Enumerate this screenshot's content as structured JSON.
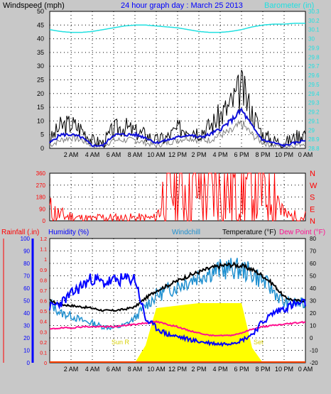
{
  "header": {
    "left_title": "Windspeed (mph)",
    "center_title": "24 hour graph day : March 25 2013",
    "right_title": "Barometer (in)"
  },
  "colors": {
    "background": "#c8c8c8",
    "plot_bg": "#ffffff",
    "wind": "#000000",
    "wind_avg": "#1010d8",
    "wind_gust_fill": "#808080",
    "barometer": "#20e0e0",
    "direction": "#ff0000",
    "rain": "#ff2020",
    "humidity": "#0000ff",
    "windchill": "#2090d0",
    "temperature": "#000000",
    "dewpoint": "#ff1090",
    "solar": "#ffff00",
    "sun_label": "#d8d000"
  },
  "legend3": {
    "rainfall": "Rainfall (.in)",
    "humidity": "Humidity (%)",
    "windchill": "Windchill",
    "temperature": "Temperature (°F)",
    "dewpoint": "Dew Point (°F)"
  },
  "annotations": {
    "sun_rise": "Sun R",
    "sun_set": "Set"
  },
  "chart_data": [
    {
      "type": "line",
      "title": "24 hour graph day : March 25 2013",
      "x_tick_labels": [
        "2 AM",
        "4 AM",
        "6 AM",
        "8 AM",
        "10 AM",
        "12 PM",
        "2 PM",
        "4 PM",
        "6 PM",
        "8 PM",
        "10 PM",
        "0 AM"
      ],
      "x": [
        0,
        1,
        2,
        3,
        4,
        5,
        6,
        7,
        8,
        9,
        10,
        11,
        12,
        13,
        14,
        15,
        16,
        17,
        18,
        19,
        20,
        21,
        22,
        23,
        24
      ],
      "y_left": {
        "label": "Windspeed (mph)",
        "ticks": [
          0,
          5,
          10,
          15,
          20,
          25,
          30,
          35,
          40,
          45,
          50
        ],
        "range": [
          0,
          50
        ]
      },
      "y_right": {
        "label": "Barometer (in)",
        "ticks": [
          "28.8",
          "28.9",
          "29",
          "29.1",
          "29.2",
          "29.3",
          "29.4",
          "29.5",
          "29.6",
          "29.7",
          "29.8",
          "29.9",
          "30",
          "30.1",
          "30.2",
          "30.3"
        ],
        "range": [
          28.8,
          30.3
        ]
      },
      "series": [
        {
          "name": "Windspeed",
          "axis": "left",
          "values": [
            3,
            8,
            9,
            7,
            3,
            2,
            7,
            8,
            6,
            5,
            3,
            4,
            7,
            8,
            6,
            8,
            12,
            16,
            22,
            13,
            5,
            3,
            2,
            4,
            6
          ]
        },
        {
          "name": "Average",
          "axis": "left",
          "values": [
            2,
            5,
            5,
            4,
            1,
            1,
            5,
            5,
            5,
            4,
            2,
            3,
            4,
            5,
            4,
            5,
            7,
            10,
            14,
            8,
            3,
            2,
            1,
            2,
            3
          ]
        },
        {
          "name": "Gust",
          "axis": "left",
          "values": [
            1,
            3,
            4,
            3,
            1,
            1,
            3,
            3,
            3,
            2,
            1,
            2,
            3,
            4,
            3,
            3,
            5,
            6,
            9,
            5,
            2,
            1,
            1,
            1,
            2
          ]
        },
        {
          "name": "Barometer",
          "axis": "right",
          "values": [
            30.1,
            30.08,
            30.07,
            30.07,
            30.08,
            30.1,
            30.12,
            30.14,
            30.15,
            30.15,
            30.14,
            30.13,
            30.12,
            30.1,
            30.08,
            30.07,
            30.07,
            30.08,
            30.1,
            30.13,
            30.15,
            30.16,
            30.16,
            30.17,
            30.17
          ]
        }
      ],
      "grid": true
    },
    {
      "type": "scatter",
      "y_left_ticks": [
        0,
        90,
        180,
        270,
        360
      ],
      "y_right_ticks": [
        "N",
        "E",
        "S",
        "W",
        "N"
      ],
      "range": [
        0,
        360
      ],
      "series": [
        {
          "name": "Wind Direction",
          "values": [
            80,
            40,
            30,
            20,
            15,
            25,
            20,
            20,
            20,
            20,
            20,
            280,
            270,
            260,
            250,
            245,
            240,
            250,
            260,
            260,
            270,
            290,
            40,
            30,
            30
          ]
        }
      ],
      "grid": true
    },
    {
      "type": "line",
      "y_left_ticks": [
        0,
        10,
        20,
        30,
        40,
        50,
        60,
        70,
        80,
        90,
        100
      ],
      "y_inner_ticks": [
        "0",
        "0.1",
        "0.2",
        "0.3",
        "0.4",
        "0.5",
        "0.6",
        "0.7",
        "0.8",
        "0.9",
        "1",
        "1.1",
        "1.2"
      ],
      "y_right_ticks": [
        -20,
        -10,
        0,
        10,
        20,
        30,
        40,
        50,
        60,
        70,
        80
      ],
      "x_tick_labels": [
        "2 AM",
        "4 AM",
        "6 AM",
        "8 AM",
        "10 AM",
        "12 PM",
        "2 PM",
        "4 PM",
        "6 PM",
        "8 PM",
        "10 PM",
        "0 AM"
      ],
      "x": [
        0,
        1,
        2,
        3,
        4,
        5,
        6,
        7,
        8,
        9,
        10,
        11,
        12,
        13,
        14,
        15,
        16,
        17,
        18,
        19,
        20,
        21,
        22,
        23,
        24
      ],
      "series": [
        {
          "name": "Temperature",
          "axis": "right",
          "values": [
            30,
            27,
            26,
            25,
            24,
            22,
            22,
            23,
            25,
            32,
            38,
            42,
            46,
            50,
            53,
            56,
            58,
            59,
            58,
            55,
            50,
            43,
            33,
            30,
            30
          ]
        },
        {
          "name": "Windchill",
          "axis": "right",
          "values": [
            28,
            20,
            18,
            14,
            12,
            9,
            8,
            10,
            16,
            26,
            34,
            38,
            42,
            46,
            50,
            53,
            55,
            56,
            55,
            52,
            46,
            38,
            28,
            28,
            27
          ]
        },
        {
          "name": "Dew Point",
          "axis": "right",
          "values": [
            7,
            8,
            8,
            9,
            9,
            9,
            9,
            10,
            11,
            12,
            13,
            11,
            9,
            6,
            4,
            2,
            2,
            2,
            4,
            7,
            9,
            10,
            11,
            12,
            13
          ]
        },
        {
          "name": "Humidity",
          "axis": "left",
          "values": [
            45,
            48,
            55,
            62,
            68,
            64,
            66,
            67,
            68,
            35,
            28,
            23,
            21,
            19,
            17,
            16,
            15,
            16,
            18,
            23,
            33,
            40,
            44,
            47,
            48
          ]
        },
        {
          "name": "Solar",
          "axis": "left",
          "values": [
            0,
            0,
            0,
            0,
            0,
            0,
            0,
            0,
            0,
            14,
            44,
            45,
            46,
            47,
            48,
            48,
            48,
            48,
            48,
            12,
            0,
            0,
            0,
            0,
            0
          ]
        },
        {
          "name": "Rainfall",
          "axis": "inner",
          "values": [
            0,
            0,
            0,
            0,
            0,
            0,
            0,
            0,
            0,
            0,
            0,
            0,
            0,
            0,
            0,
            0,
            0,
            0,
            0,
            0,
            0,
            0,
            0,
            0,
            0
          ]
        }
      ],
      "grid": true
    }
  ]
}
